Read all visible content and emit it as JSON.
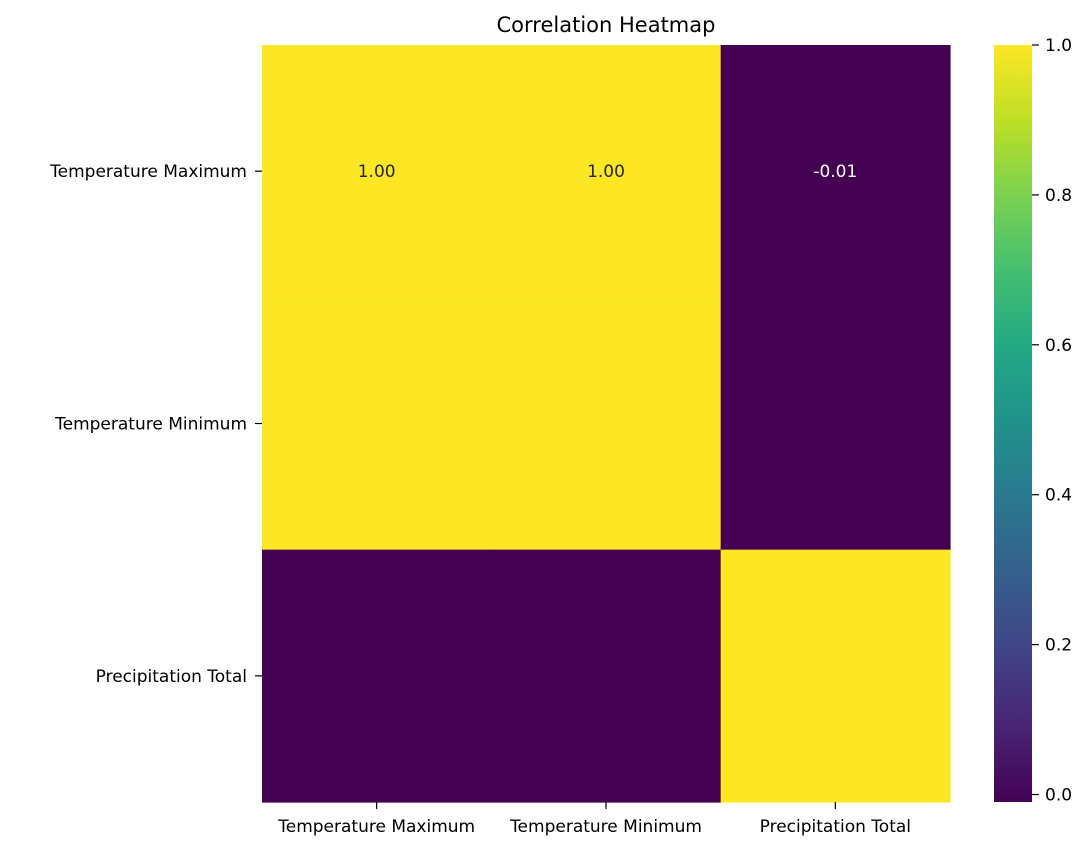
{
  "chart_data": {
    "type": "heatmap",
    "title": "Correlation Heatmap",
    "x_labels": [
      "Temperature Maximum",
      "Temperature Minimum",
      "Precipitation Total"
    ],
    "y_labels": [
      "Temperature Maximum",
      "Temperature Minimum",
      "Precipitation Total"
    ],
    "values": [
      [
        1.0,
        1.0,
        -0.01
      ],
      [
        1.0,
        1.0,
        -0.01
      ],
      [
        -0.01,
        -0.01,
        1.0
      ]
    ],
    "annotations": [
      [
        "1.00",
        "1.00",
        "-0.01"
      ],
      [
        "",
        "",
        ""
      ],
      [
        "",
        "",
        ""
      ]
    ],
    "colormap": "viridis",
    "colorbar": {
      "range": [
        -0.01,
        1.0
      ],
      "ticks": [
        0.0,
        0.2,
        0.4,
        0.6,
        0.8,
        1.0
      ],
      "tick_labels": [
        "0.0",
        "0.2",
        "0.4",
        "0.6",
        "0.8",
        "1.0"
      ]
    },
    "colors": {
      "high": "#fde725",
      "low": "#440154",
      "annotation_on_light": "#262626",
      "annotation_on_dark": "#ffffff"
    }
  }
}
